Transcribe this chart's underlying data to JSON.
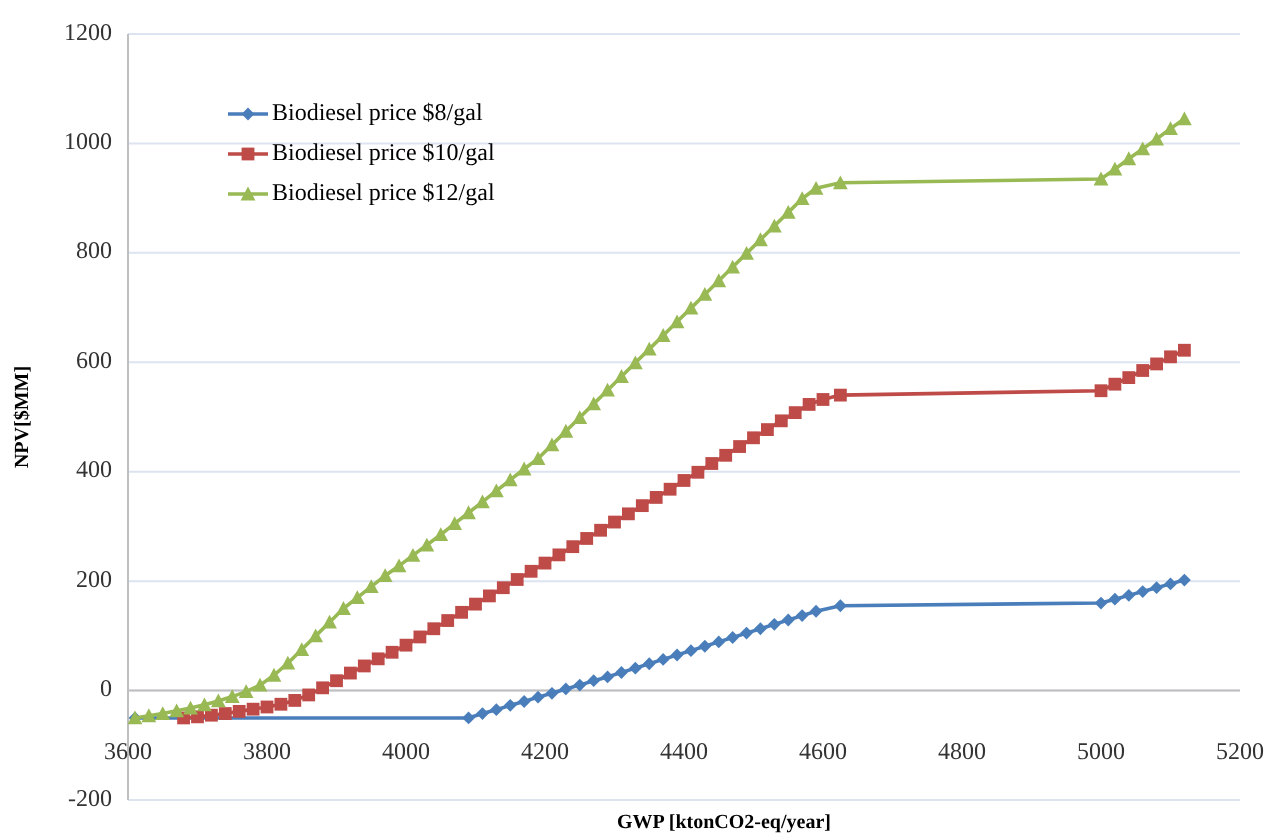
{
  "chart_data": {
    "type": "line",
    "xlabel": "GWP [ktonCO2-eq/year]",
    "ylabel": "NPV[$MM]",
    "xlim": [
      3600,
      5200
    ],
    "xticks": [
      3600,
      3800,
      4000,
      4200,
      4400,
      4600,
      4800,
      5000,
      5200
    ],
    "ylim": [
      -200,
      1200
    ],
    "yticks": [
      -200,
      0,
      200,
      400,
      600,
      800,
      1000,
      1200
    ],
    "grid": "y",
    "legend": "top left",
    "series": [
      {
        "name": "Biodiesel price $8/gal",
        "color": "#4a7ebb",
        "marker": "diamond",
        "x": [
          3610,
          4090,
          4110,
          4130,
          4150,
          4170,
          4190,
          4210,
          4230,
          4250,
          4270,
          4290,
          4310,
          4330,
          4350,
          4370,
          4390,
          4410,
          4430,
          4450,
          4470,
          4490,
          4510,
          4530,
          4550,
          4570,
          4590,
          4625,
          5000,
          5020,
          5040,
          5060,
          5080,
          5100,
          5120
        ],
        "values": [
          -50,
          -50,
          -42,
          -35,
          -27,
          -20,
          -12,
          -5,
          3,
          10,
          18,
          25,
          33,
          41,
          49,
          57,
          65,
          73,
          81,
          89,
          97,
          105,
          113,
          121,
          129,
          137,
          145,
          155,
          160,
          167,
          174,
          181,
          188,
          195,
          202
        ]
      },
      {
        "name": "Biodiesel price $10/gal",
        "color": "#be4b48",
        "marker": "square",
        "x": [
          3680,
          3700,
          3720,
          3740,
          3760,
          3780,
          3800,
          3820,
          3840,
          3860,
          3880,
          3900,
          3920,
          3940,
          3960,
          3980,
          4000,
          4020,
          4040,
          4060,
          4080,
          4100,
          4120,
          4140,
          4160,
          4180,
          4200,
          4220,
          4240,
          4260,
          4280,
          4300,
          4320,
          4340,
          4360,
          4380,
          4400,
          4420,
          4440,
          4460,
          4480,
          4500,
          4520,
          4540,
          4560,
          4580,
          4600,
          4625,
          5000,
          5020,
          5040,
          5060,
          5080,
          5100,
          5120
        ],
        "values": [
          -50,
          -48,
          -45,
          -42,
          -38,
          -34,
          -30,
          -25,
          -18,
          -8,
          5,
          18,
          32,
          45,
          58,
          70,
          83,
          98,
          113,
          128,
          143,
          158,
          173,
          188,
          203,
          218,
          233,
          248,
          263,
          278,
          293,
          308,
          323,
          338,
          353,
          368,
          384,
          399,
          415,
          430,
          446,
          462,
          477,
          493,
          508,
          523,
          532,
          540,
          548,
          560,
          572,
          585,
          597,
          610,
          622
        ]
      },
      {
        "name": "Biodiesel price $12/gal",
        "color": "#98b954",
        "marker": "triangle",
        "x": [
          3610,
          3630,
          3650,
          3670,
          3690,
          3710,
          3730,
          3750,
          3770,
          3790,
          3810,
          3830,
          3850,
          3870,
          3890,
          3910,
          3930,
          3950,
          3970,
          3990,
          4010,
          4030,
          4050,
          4070,
          4090,
          4110,
          4130,
          4150,
          4170,
          4190,
          4210,
          4230,
          4250,
          4270,
          4290,
          4310,
          4330,
          4350,
          4370,
          4390,
          4410,
          4430,
          4450,
          4470,
          4490,
          4510,
          4530,
          4550,
          4570,
          4590,
          4625,
          5000,
          5020,
          5040,
          5060,
          5080,
          5100,
          5120
        ],
        "values": [
          -50,
          -46,
          -42,
          -37,
          -32,
          -26,
          -19,
          -11,
          -2,
          10,
          28,
          50,
          75,
          100,
          125,
          150,
          170,
          190,
          210,
          228,
          247,
          266,
          285,
          305,
          325,
          345,
          365,
          385,
          405,
          424,
          449,
          474,
          499,
          524,
          549,
          574,
          599,
          624,
          649,
          674,
          699,
          724,
          749,
          774,
          799,
          824,
          849,
          874,
          899,
          918,
          928,
          935,
          953,
          972,
          990,
          1008,
          1027,
          1045
        ]
      }
    ]
  }
}
